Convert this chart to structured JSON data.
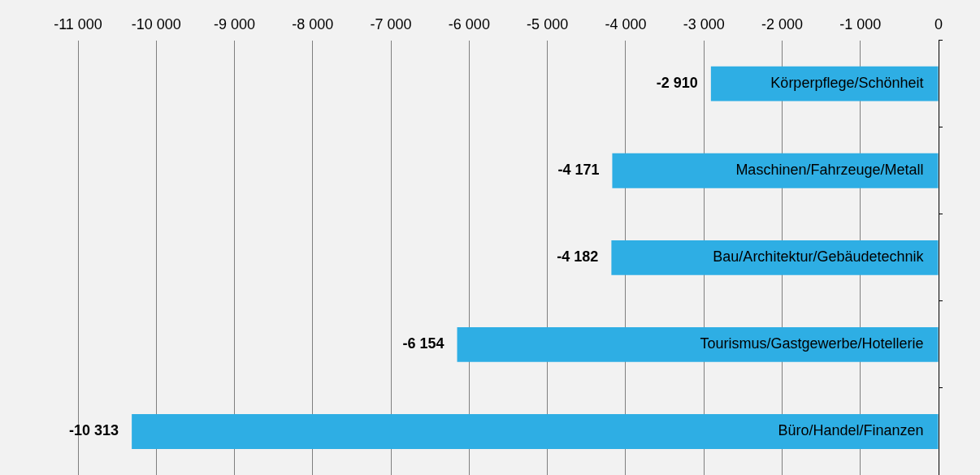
{
  "chart_data": {
    "type": "bar",
    "orientation": "horizontal",
    "categories": [
      "Körperpflege/Schönheit",
      "Maschinen/Fahrzeuge/Metall",
      "Bau/Architektur/Gebäudetechnik",
      "Tourismus/Gastgewerbe/Hotellerie",
      "Büro/Handel/Finanzen"
    ],
    "values": [
      -2910,
      -4171,
      -4182,
      -6154,
      -10313
    ],
    "value_labels": [
      "-2 910",
      "-4 171",
      "-4 182",
      "-6 154",
      "-10 313"
    ],
    "color": "#2eaee4",
    "xlim": [
      -11000,
      0
    ],
    "xticks": [
      {
        "value": -11000,
        "label": "-11 000"
      },
      {
        "value": -10000,
        "label": "-10 000"
      },
      {
        "value": -9000,
        "label": "-9 000"
      },
      {
        "value": -8000,
        "label": "-8 000"
      },
      {
        "value": -7000,
        "label": "-7 000"
      },
      {
        "value": -6000,
        "label": "-6 000"
      },
      {
        "value": -5000,
        "label": "-5 000"
      },
      {
        "value": -4000,
        "label": "-4 000"
      },
      {
        "value": -3000,
        "label": "-3 000"
      },
      {
        "value": -2000,
        "label": "-2 000"
      },
      {
        "value": -1000,
        "label": "-1 000"
      },
      0
    ],
    "grid": "x",
    "legend": false
  }
}
